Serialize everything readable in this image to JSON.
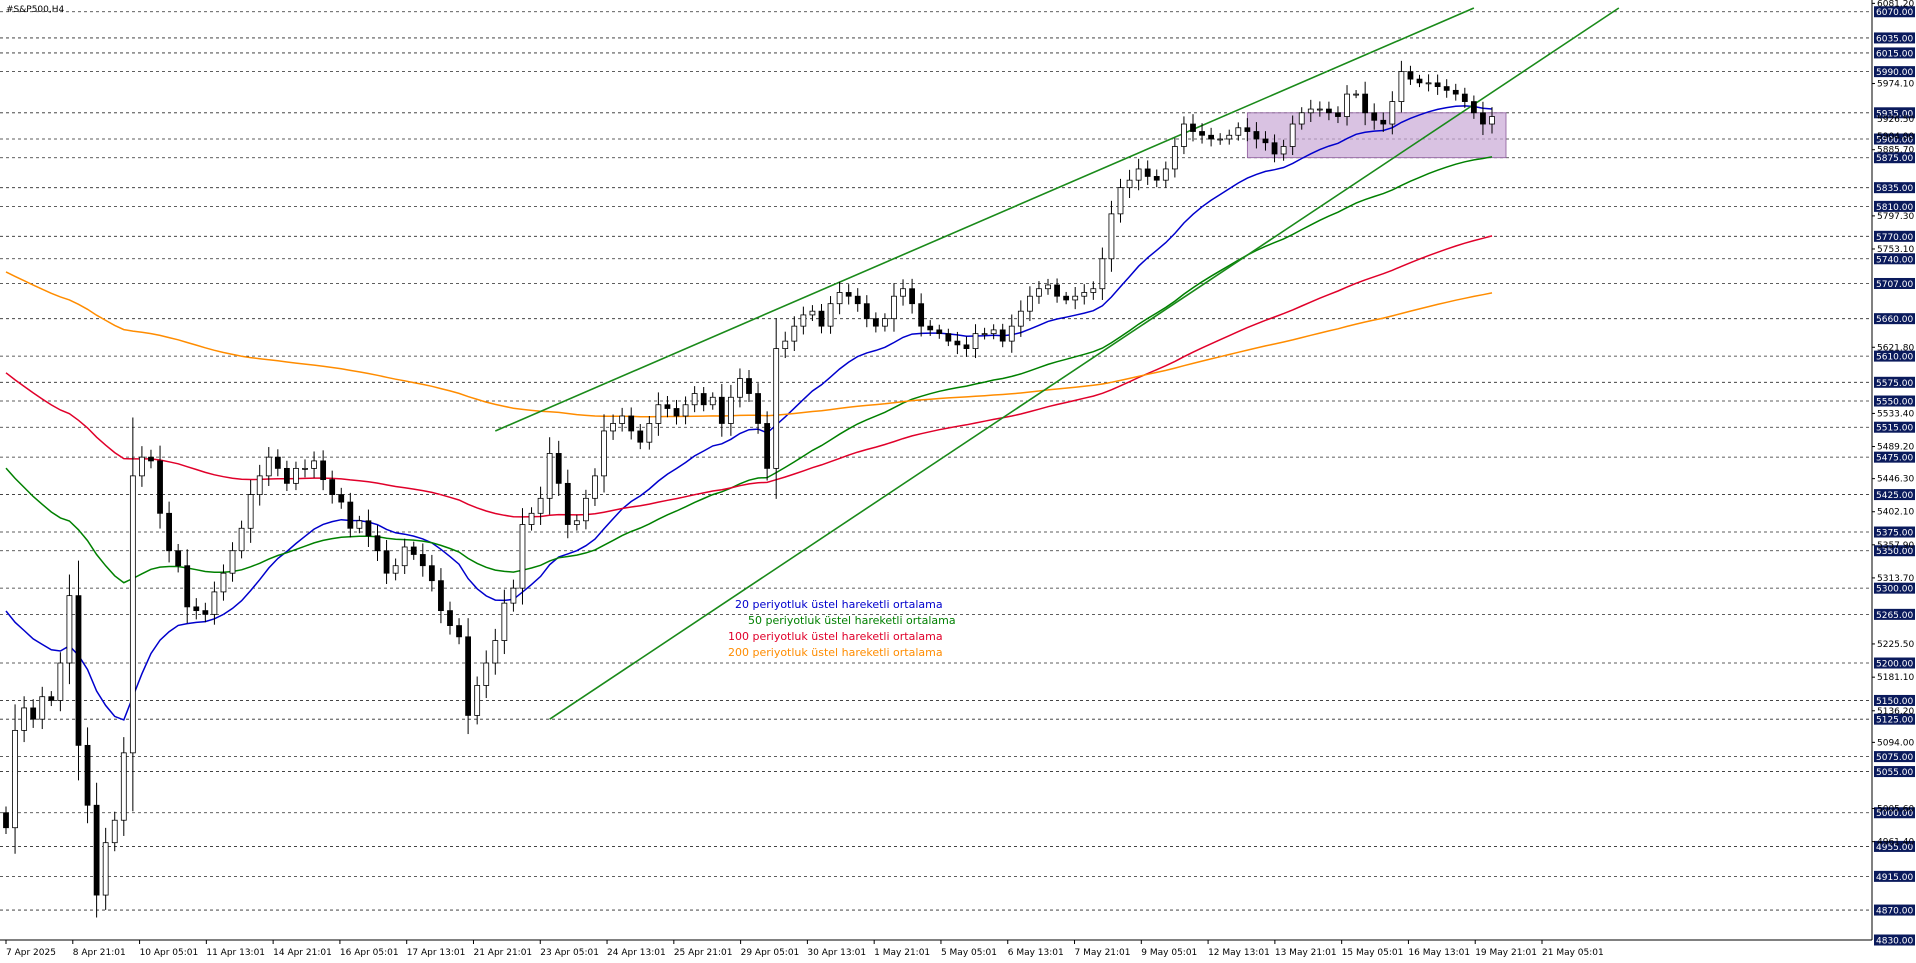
{
  "chart_data": {
    "type": "candlestick",
    "title": "#S&P500,H4",
    "ylim": [
      4830,
      6075
    ],
    "y_tick_labels": [
      5974.1,
      5885.7,
      5797.3,
      5753.1,
      5621.8,
      5533.4,
      5489.2,
      5446.3,
      5402.1,
      5357.9,
      5313.7,
      5225.5,
      5181.1,
      5136.2,
      5094.0,
      5005.6,
      4961.4,
      6081.2
    ],
    "level_labels": [
      6070.0,
      6035.0,
      6015.0,
      5990.0,
      5935.0,
      5900.0,
      5875.0,
      5835.0,
      5810.0,
      5770.0,
      5740.0,
      5707.0,
      5660.0,
      5610.0,
      5575.0,
      5550.0,
      5515.0,
      5475.0,
      5425.0,
      5375.0,
      5350.0,
      5300.0,
      5265.0,
      5200.0,
      5150.0,
      5125.0,
      5075.0,
      5055.0,
      5000.0,
      4955.0,
      4915.0,
      4870.0,
      4830.0
    ],
    "highlight_labels": [
      5926.5,
      5904.0
    ],
    "x_tick_labels": [
      "7 Apr 2025",
      "8 Apr 21:01",
      "10 Apr 05:01",
      "11 Apr 13:01",
      "14 Apr 21:01",
      "16 Apr 05:01",
      "17 Apr 13:01",
      "21 Apr 21:01",
      "23 Apr 05:01",
      "24 Apr 13:01",
      "25 Apr 21:01",
      "29 Apr 05:01",
      "30 Apr 13:01",
      "1 May 21:01",
      "5 May 05:01",
      "6 May 13:01",
      "7 May 21:01",
      "9 May 05:01",
      "12 May 13:01",
      "13 May 21:01",
      "15 May 05:01",
      "16 May 13:01",
      "19 May 21:01",
      "21 May 05:01"
    ],
    "legend": [
      {
        "label": "20 periyotluk üstel hareketli ortalama",
        "color": "#0000cc"
      },
      {
        "label": "50 periyotluk üstel hareketli ortalama",
        "color": "#008000"
      },
      {
        "label": "100 periyotluk üstel hareketli ortalama",
        "color": "#e0002a"
      },
      {
        "label": "200 periyotluk üstel hareketli ortalama",
        "color": "#ff8c00"
      }
    ],
    "candle_close": [
      4980,
      5110,
      5140,
      5125,
      5155,
      5150,
      5200,
      5290,
      5090,
      5010,
      4890,
      4960,
      4990,
      5080,
      5450,
      5475,
      5470,
      5400,
      5350,
      5330,
      5275,
      5270,
      5265,
      5295,
      5320,
      5350,
      5380,
      5425,
      5450,
      5475,
      5460,
      5440,
      5460,
      5460,
      5470,
      5445,
      5425,
      5415,
      5380,
      5390,
      5370,
      5350,
      5320,
      5330,
      5355,
      5345,
      5330,
      5310,
      5270,
      5250,
      5235,
      5130,
      5170,
      5200,
      5230,
      5280,
      5300,
      5385,
      5400,
      5420,
      5480,
      5440,
      5385,
      5390,
      5420,
      5450,
      5510,
      5520,
      5530,
      5510,
      5495,
      5520,
      5545,
      5540,
      5530,
      5545,
      5560,
      5545,
      5555,
      5520,
      5555,
      5580,
      5560,
      5520,
      5460,
      5620,
      5630,
      5650,
      5665,
      5670,
      5650,
      5680,
      5695,
      5690,
      5680,
      5660,
      5650,
      5660,
      5690,
      5700,
      5680,
      5650,
      5645,
      5640,
      5630,
      5625,
      5620,
      5640,
      5640,
      5645,
      5630,
      5650,
      5670,
      5690,
      5700,
      5705,
      5690,
      5685,
      5690,
      5695,
      5700,
      5740,
      5800,
      5835,
      5845,
      5860,
      5850,
      5845,
      5860,
      5890,
      5920,
      5910,
      5905,
      5900,
      5900,
      5905,
      5915,
      5910,
      5900,
      5895,
      5880,
      5890,
      5920,
      5935,
      5940,
      5940,
      5935,
      5930,
      5960,
      5960,
      5935,
      5925,
      5920,
      5950,
      5990,
      5980,
      5975,
      5975,
      5970,
      5965,
      5960,
      5950,
      5935,
      5920,
      5930
    ]
  }
}
